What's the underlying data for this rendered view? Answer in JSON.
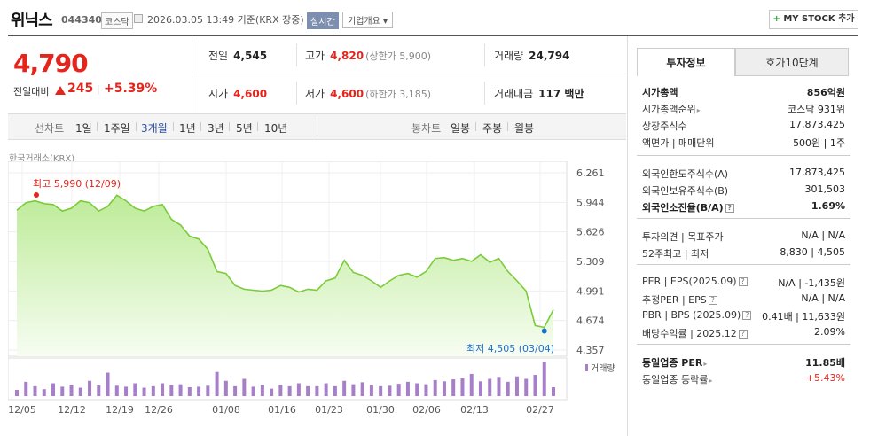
{
  "header": {
    "name": "위닉스",
    "code": "044340",
    "market": "코스닥",
    "datetime": "2026.03.05 13:49 기준(KRX 장중)",
    "realtime": "실시간",
    "company": "기업개요 ▾",
    "mystock_plus": "+",
    "mystock": "MY STOCK 추가"
  },
  "price": {
    "current": "4,790",
    "prev_label": "전일대비",
    "change": "245",
    "sep": "|",
    "change_pct": "+5.39%"
  },
  "stats": {
    "prev_close": {
      "k": "전일",
      "v": "4,545"
    },
    "high": {
      "k": "고가",
      "v": "4,820",
      "sub": "(상한가 5,900)"
    },
    "volume": {
      "k": "거래량",
      "v": "24,794"
    },
    "open": {
      "k": "시가",
      "v": "4,600"
    },
    "low": {
      "k": "저가",
      "v": "4,600",
      "sub": "(하한가 3,185)"
    },
    "amount": {
      "k": "거래대금",
      "v": "117 백만"
    }
  },
  "periods": {
    "label": "선차트",
    "items": [
      "1일",
      "1주일",
      "3개월",
      "1년",
      "3년",
      "5년",
      "10년"
    ],
    "active_index": 2,
    "candle_label": "봉차트",
    "candles": [
      "일봉",
      "주봉",
      "월봉"
    ]
  },
  "exchange_label": "한국거래소(KRX)",
  "chart_data": {
    "type": "area",
    "x_tick_labels": [
      "12/05",
      "12/12",
      "12/19",
      "12/26",
      "01/08",
      "01/16",
      "01/23",
      "01/30",
      "02/06",
      "02/13",
      "02/27"
    ],
    "y_tick_labels": [
      "6,261",
      "5,944",
      "5,626",
      "5,309",
      "4,991",
      "4,674",
      "4,357"
    ],
    "ylim": [
      4357,
      6261
    ],
    "max_label": "최고 5,990 (12/09)",
    "min_label": "최저 4,505 (03/04)",
    "volume_label": "거래량",
    "values": [
      5860,
      5940,
      5960,
      5930,
      5920,
      5850,
      5880,
      5960,
      5940,
      5850,
      5900,
      6020,
      5960,
      5880,
      5850,
      5900,
      5920,
      5760,
      5700,
      5580,
      5550,
      5440,
      5200,
      5180,
      5050,
      5010,
      5000,
      4990,
      5000,
      5050,
      5030,
      4980,
      5010,
      5000,
      5100,
      5130,
      5320,
      5190,
      5160,
      5100,
      5030,
      5100,
      5160,
      5180,
      5140,
      5200,
      5340,
      5350,
      5320,
      5340,
      5310,
      5380,
      5300,
      5340,
      5200,
      5100,
      4990,
      4620,
      4600,
      4790
    ],
    "volumes": [
      25,
      58,
      40,
      28,
      52,
      38,
      46,
      34,
      62,
      44,
      95,
      42,
      38,
      52,
      34,
      40,
      52,
      45,
      48,
      36,
      38,
      42,
      98,
      62,
      40,
      70,
      38,
      45,
      30,
      46,
      40,
      52,
      40,
      40,
      52,
      40,
      62,
      48,
      56,
      45,
      40,
      42,
      50,
      58,
      52,
      48,
      65,
      60,
      68,
      72,
      90,
      60,
      70,
      78,
      58,
      80,
      70,
      86,
      140,
      36
    ],
    "volume_max": 140,
    "grid": true,
    "line_color": "#7bcb3a",
    "fill_color": "#d9f5c4"
  },
  "right": {
    "tabs": [
      "투자정보",
      "호가10단계"
    ],
    "rows": [
      {
        "l": "시가총액",
        "r": "856억원",
        "lb": true,
        "rb": true
      },
      {
        "l": "시가총액순위",
        "r": "코스닥 931위",
        "arrow": "▸"
      },
      {
        "l": "상장주식수",
        "r": "17,873,425"
      },
      {
        "l": "액면가 | 매매단위",
        "r": "500원 | 1주"
      },
      {
        "l": "외국인한도주식수(A)",
        "r": "17,873,425"
      },
      {
        "l": "외국인보유주식수(B)",
        "r": "301,503"
      },
      {
        "l": "외국인소진율(B/A)",
        "r": "1.69%",
        "lb": true,
        "rb": true,
        "q": "?"
      },
      {
        "l": "투자의견 | 목표주가",
        "r": "N/A | N/A"
      },
      {
        "l": "52주최고 | 최저",
        "r": "8,830 | 4,505"
      },
      {
        "l": "PER | EPS(2025.09)",
        "r": "N/A | -1,435원",
        "q": "?"
      },
      {
        "l": "추정PER | EPS",
        "r": "N/A | N/A",
        "q": "?"
      },
      {
        "l": "PBR | BPS (2025.09)",
        "r": "0.41배 | 11,633원",
        "q": "?"
      },
      {
        "l": "배당수익률 | 2025.12",
        "r": "2.09%",
        "q": "?"
      },
      {
        "l": "동일업종 PER",
        "r": "11.85배",
        "lb": true,
        "rb": true,
        "arrow": "▸"
      },
      {
        "l": "동일업종 등락률",
        "r": "+5.43%",
        "red": true,
        "arrow": "▸"
      }
    ]
  }
}
